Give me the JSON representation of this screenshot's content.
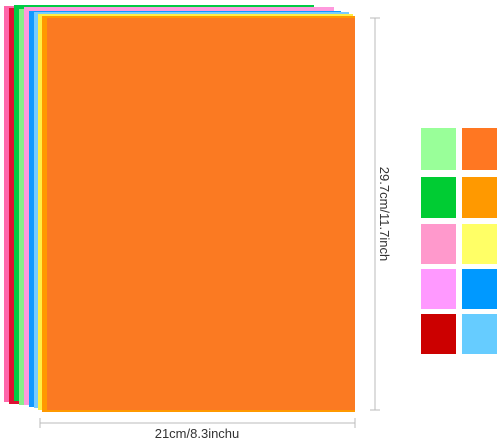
{
  "dimensions": {
    "width": "21cm/8.3inchu",
    "height": "29.7cm/11.7inch"
  }
}
